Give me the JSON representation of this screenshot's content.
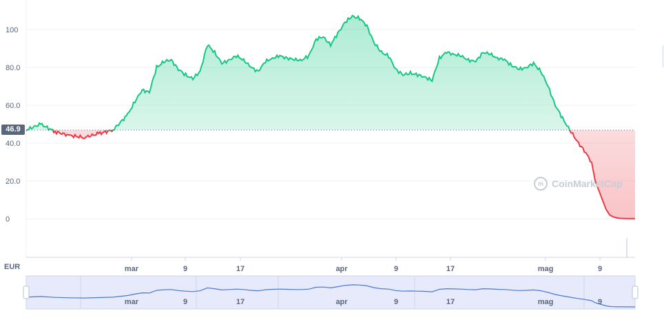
{
  "currency_label": "EUR",
  "reference_label": "46.9",
  "watermark": "CoinMarketCap",
  "chart_data": {
    "type": "area",
    "title": "",
    "xlabel": "",
    "ylabel": "",
    "ylim": [
      -20,
      115
    ],
    "y_ticks": [
      "0",
      "20.0",
      "40.0",
      "60.0",
      "80.0",
      "100"
    ],
    "x_ticks": [
      "mar",
      "9",
      "17",
      "apr",
      "9",
      "17",
      "mag",
      "9"
    ],
    "reference_value": 46.9,
    "colors": {
      "up": "#16c784",
      "down": "#ea3943",
      "navigator": "#4878d8",
      "reference": "#58667e"
    },
    "grid": true,
    "series": [
      {
        "x": [
          0,
          2,
          4,
          6,
          8,
          10,
          12,
          14,
          15,
          16,
          17,
          18,
          19,
          20,
          21,
          22,
          23,
          24,
          25,
          26,
          27,
          28,
          29,
          30,
          31,
          32,
          33,
          34,
          35,
          36,
          37,
          38,
          39,
          40,
          41,
          42,
          43,
          44,
          45,
          46,
          47,
          48,
          49,
          50,
          51,
          52,
          53,
          54,
          55,
          56,
          57,
          58,
          59,
          60,
          61,
          62,
          63,
          64,
          65,
          66,
          67,
          68,
          69,
          70,
          71,
          72,
          73,
          74,
          75,
          76,
          77,
          78,
          78.5,
          79,
          79.5,
          80,
          80.5,
          81,
          81.5,
          82,
          83,
          84
        ],
        "values": [
          47,
          50,
          46,
          44,
          43,
          45,
          47,
          55,
          62,
          68,
          67,
          80,
          83,
          84,
          79,
          76,
          74,
          78,
          92,
          88,
          82,
          84,
          86,
          84,
          80,
          78,
          83,
          85,
          86,
          85,
          84,
          84,
          86,
          95,
          96,
          92,
          98,
          104,
          107,
          106,
          102,
          93,
          88,
          86,
          79,
          76,
          77,
          76,
          75,
          73,
          85,
          88,
          87,
          86,
          84,
          83,
          88,
          87,
          85,
          84,
          81,
          79,
          80,
          82,
          78,
          70,
          60,
          53,
          46.9,
          41,
          36,
          30,
          20,
          15,
          10,
          5,
          2,
          1,
          0.5,
          0.2,
          0.1,
          0.1
        ]
      }
    ]
  }
}
